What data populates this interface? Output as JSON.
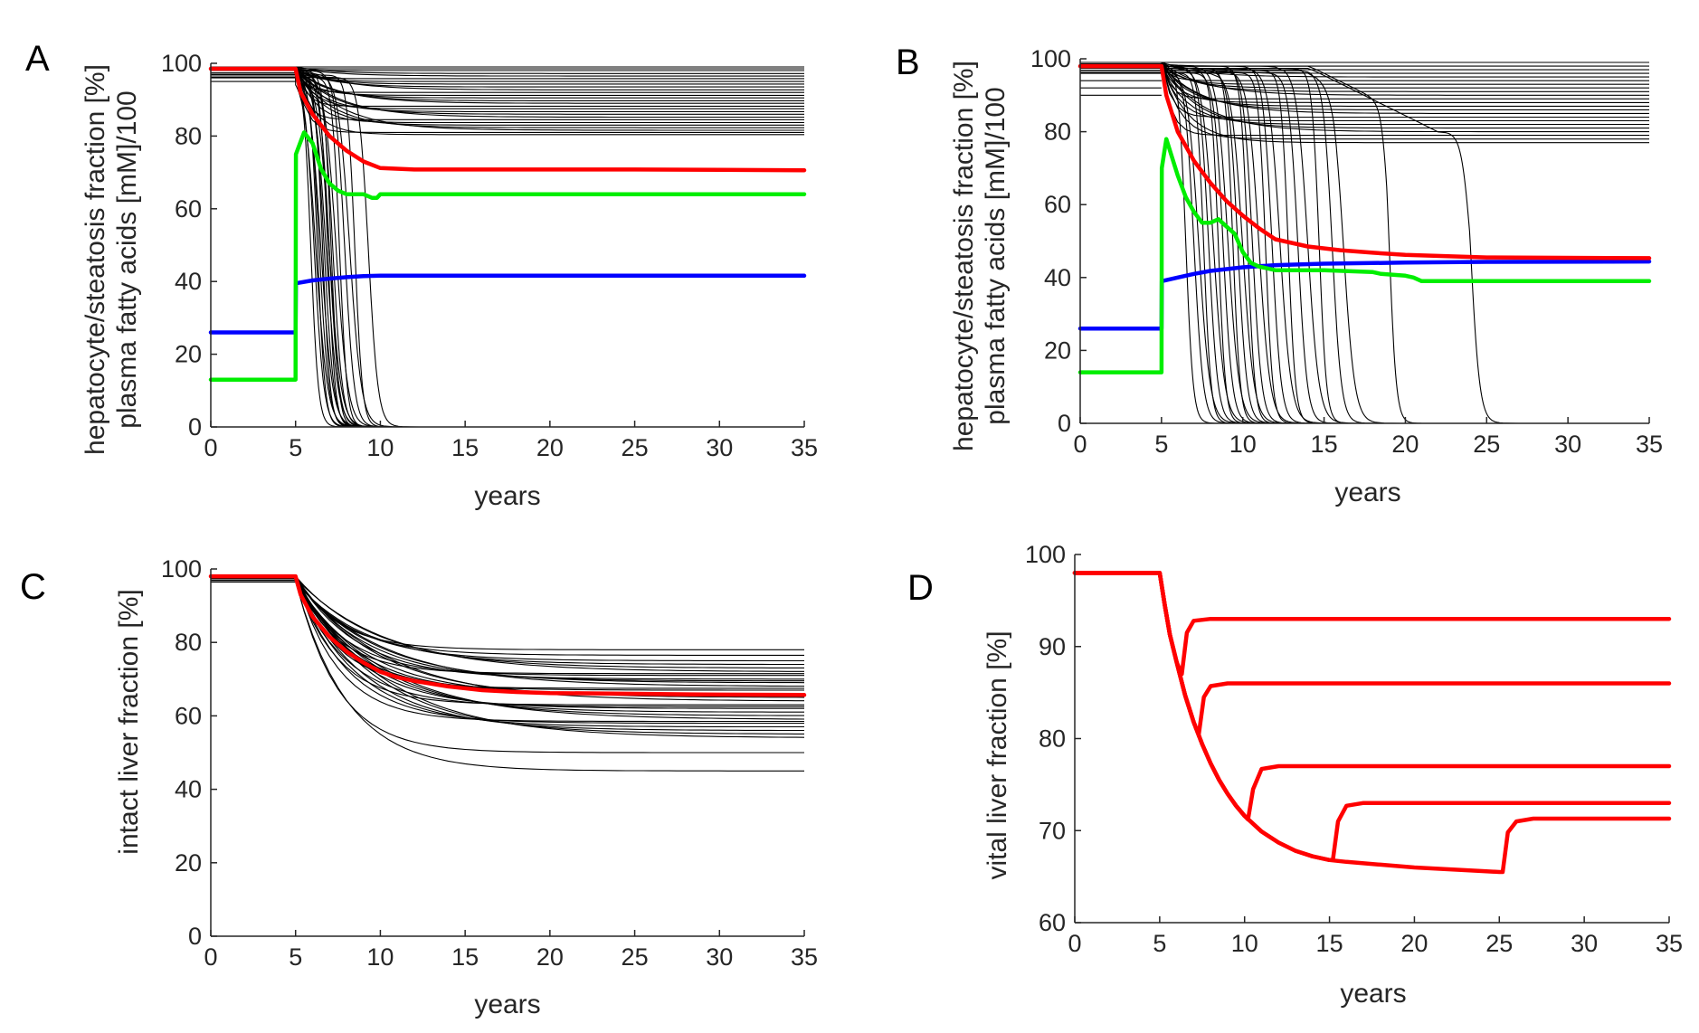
{
  "chart_data": [
    {
      "panel": "A",
      "type": "line",
      "xlabel": "years",
      "ylabel_lines": [
        "hepatocyte/steatosis fraction [%]",
        "plasma fatty acids [mM]/100"
      ],
      "xlim": [
        0,
        35
      ],
      "ylim": [
        0,
        100
      ],
      "xticks": [
        0,
        5,
        10,
        15,
        20,
        25,
        30,
        35
      ],
      "yticks": [
        0,
        20,
        40,
        60,
        80,
        100
      ],
      "ensemble": {
        "color": "#000000",
        "plateau_levels": [
          99,
          98.5,
          98,
          97.2,
          96.5,
          95.8,
          95,
          94.3,
          93.5,
          92.7,
          92,
          91.2,
          90.5,
          89.7,
          89,
          88.2,
          87.5,
          86.7,
          86,
          85.2,
          84.5,
          83.7,
          83,
          82.3,
          81.6,
          81,
          80.4
        ],
        "collapse_years": [
          5.9,
          6.1,
          6.2,
          6.3,
          6.4,
          6.5,
          6.6,
          6.7,
          6.8,
          6.9,
          7.0,
          7.0,
          7.1,
          7.2,
          7.4,
          7.6,
          7.9,
          8.2,
          8.5,
          9.3
        ],
        "baseline_levels": [
          98.5,
          97,
          96,
          95
        ]
      },
      "series": [
        {
          "name": "red",
          "color": "#ff0000",
          "x": [
            0,
            5,
            5.3,
            6,
            7,
            8,
            9,
            10,
            12,
            15,
            20,
            25,
            30,
            35
          ],
          "y": [
            98.5,
            98.5,
            92,
            86,
            80,
            76,
            73,
            71.2,
            70.8,
            70.8,
            70.8,
            70.8,
            70.7,
            70.6
          ]
        },
        {
          "name": "green",
          "color": "#00ee00",
          "x": [
            0,
            5,
            5.02,
            5.5,
            6,
            6.5,
            7,
            7.5,
            8,
            9,
            9.5,
            9.8,
            10,
            35
          ],
          "y": [
            13,
            13,
            75,
            81,
            78,
            71,
            67,
            65,
            64,
            64,
            63,
            63,
            64,
            64
          ]
        },
        {
          "name": "blue",
          "color": "#0000ff",
          "x": [
            0,
            5,
            5.02,
            6,
            7,
            8,
            9,
            10,
            35
          ],
          "y": [
            26,
            26,
            39.5,
            40.3,
            40.8,
            41.2,
            41.5,
            41.6,
            41.6
          ]
        }
      ]
    },
    {
      "panel": "B",
      "type": "line",
      "xlabel": "years",
      "ylabel_lines": [
        "hepatocyte/steatosis fraction [%]",
        "plasma fatty acids [mM]/100"
      ],
      "xlim": [
        0,
        35
      ],
      "ylim": [
        0,
        100
      ],
      "xticks": [
        0,
        5,
        10,
        15,
        20,
        25,
        30,
        35
      ],
      "yticks": [
        0,
        20,
        40,
        60,
        80,
        100
      ],
      "ensemble": {
        "color": "#000000",
        "plateau_levels": [
          99,
          98,
          97,
          96,
          95,
          94,
          93,
          92,
          91,
          90,
          89,
          88,
          87,
          86,
          85,
          84,
          83,
          82,
          81,
          80,
          79,
          78,
          77
        ],
        "collapse_years": [
          6.5,
          7.0,
          7.3,
          7.6,
          7.9,
          8.2,
          8.5,
          8.8,
          9.1,
          9.4,
          9.7,
          10.0,
          10.3,
          10.6,
          11.0,
          11.4,
          11.8,
          12.3,
          12.8,
          13.4,
          14.0,
          14.7,
          15.5,
          16.2,
          19.0,
          24.0
        ],
        "baseline_levels": [
          98,
          96,
          94,
          92,
          90
        ]
      },
      "series": [
        {
          "name": "red",
          "color": "#ff0000",
          "x": [
            0,
            5,
            5.3,
            6,
            7,
            8,
            9,
            10,
            11,
            12,
            14,
            16,
            18,
            20,
            25,
            35
          ],
          "y": [
            98,
            98,
            90,
            80,
            72,
            66,
            61,
            57,
            53.5,
            50.5,
            48.5,
            47.5,
            46.8,
            46.2,
            45.5,
            45.3
          ]
        },
        {
          "name": "green",
          "color": "#00ee00",
          "x": [
            0,
            5,
            5.02,
            5.3,
            6,
            6.5,
            7,
            7.5,
            8,
            8.5,
            9,
            9.5,
            10,
            10.5,
            11,
            12,
            15,
            18,
            18.5,
            20,
            20.5,
            21,
            35
          ],
          "y": [
            14,
            14,
            70,
            78,
            68,
            62,
            58,
            55,
            55,
            56,
            54,
            52,
            47,
            44,
            43,
            42,
            42,
            41.5,
            41,
            40.5,
            40,
            39,
            39
          ]
        },
        {
          "name": "blue",
          "color": "#0000ff",
          "x": [
            0,
            5,
            5.02,
            6,
            7,
            8,
            10,
            12,
            15,
            20,
            25,
            35
          ],
          "y": [
            26,
            26,
            39,
            40,
            41,
            41.8,
            42.8,
            43.4,
            43.8,
            44.1,
            44.3,
            44.4
          ]
        }
      ]
    },
    {
      "panel": "C",
      "type": "line",
      "xlabel": "years",
      "ylabel": "intact liver fraction [%]",
      "xlim": [
        0,
        35
      ],
      "ylim": [
        0,
        100
      ],
      "xticks": [
        0,
        5,
        10,
        15,
        20,
        25,
        30,
        35
      ],
      "yticks": [
        0,
        20,
        40,
        60,
        80,
        100
      ],
      "ensemble": {
        "color": "#000000",
        "start_levels": [
          98,
          97.5,
          97,
          96.5
        ],
        "end_levels": [
          78,
          76.5,
          75,
          74,
          73,
          72,
          71.5,
          71,
          70,
          69.5,
          69,
          68,
          67.5,
          67,
          66,
          65.5,
          65,
          64,
          63,
          62.5,
          62,
          61,
          60,
          59,
          58.5,
          58,
          57,
          56,
          55,
          54,
          50,
          45
        ]
      },
      "series": [
        {
          "name": "red",
          "color": "#ff0000",
          "x": [
            0,
            5,
            5.3,
            6,
            7,
            8,
            9,
            10,
            11,
            12,
            14,
            16,
            18,
            20,
            25,
            30,
            35
          ],
          "y": [
            98,
            98,
            93,
            87,
            81.5,
            77.5,
            74.5,
            72,
            70.5,
            69.5,
            68,
            67,
            66.5,
            66.2,
            66,
            65.8,
            65.7
          ]
        }
      ]
    },
    {
      "panel": "D",
      "type": "line",
      "xlabel": "years",
      "ylabel": "vital liver fraction [%]",
      "xlim": [
        0,
        35
      ],
      "ylim": [
        60,
        100
      ],
      "xticks": [
        0,
        5,
        10,
        15,
        20,
        25,
        30,
        35
      ],
      "yticks": [
        60,
        70,
        80,
        90,
        100
      ],
      "series": [
        {
          "name": "recovery at 6",
          "color": "#ff0000",
          "x": [
            0,
            5,
            5.3,
            5.6,
            6.0,
            6.3,
            6.6,
            7,
            8,
            35
          ],
          "y": [
            98,
            98,
            94.5,
            91.3,
            88.3,
            87.0,
            91.5,
            92.8,
            93,
            93
          ]
        },
        {
          "name": "recovery at 7",
          "color": "#ff0000",
          "x": [
            0,
            5,
            5.3,
            5.6,
            6.0,
            6.5,
            7.0,
            7.3,
            7.6,
            8,
            9,
            35
          ],
          "y": [
            98,
            98,
            94.5,
            91.3,
            88.3,
            84.7,
            81.8,
            80.4,
            84.5,
            85.7,
            86,
            86
          ]
        },
        {
          "name": "recovery at 10",
          "color": "#ff0000",
          "x": [
            0,
            5,
            5.3,
            5.6,
            6,
            6.5,
            7,
            7.5,
            8,
            8.5,
            9,
            9.5,
            10,
            10.2,
            10.5,
            11,
            12,
            35
          ],
          "y": [
            98,
            98,
            94.5,
            91.3,
            88.3,
            84.7,
            81.8,
            79.4,
            77.3,
            75.5,
            74.0,
            72.7,
            71.6,
            71.2,
            74.5,
            76.7,
            77,
            77
          ]
        },
        {
          "name": "recovery at 15",
          "color": "#ff0000",
          "x": [
            0,
            5,
            5.3,
            5.6,
            6,
            6.5,
            7,
            7.5,
            8,
            8.5,
            9,
            9.5,
            10,
            11,
            12,
            13,
            14,
            15,
            15.2,
            15.5,
            16,
            17,
            35
          ],
          "y": [
            98,
            98,
            94.5,
            91.3,
            88.3,
            84.7,
            81.8,
            79.4,
            77.3,
            75.5,
            74.0,
            72.7,
            71.6,
            69.9,
            68.7,
            67.8,
            67.2,
            66.8,
            66.8,
            71.0,
            72.7,
            73,
            73
          ]
        },
        {
          "name": "recovery at 25",
          "color": "#ff0000",
          "x": [
            0,
            5,
            5.3,
            5.6,
            6,
            6.5,
            7,
            7.5,
            8,
            8.5,
            9,
            9.5,
            10,
            11,
            12,
            13,
            14,
            15,
            16,
            18,
            20,
            22,
            24,
            25,
            25.2,
            25.5,
            26,
            27,
            35
          ],
          "y": [
            98,
            98,
            94.5,
            91.3,
            88.3,
            84.7,
            81.8,
            79.4,
            77.3,
            75.5,
            74.0,
            72.7,
            71.6,
            69.9,
            68.7,
            67.8,
            67.2,
            66.8,
            66.6,
            66.3,
            66.0,
            65.8,
            65.6,
            65.5,
            65.5,
            69.8,
            71.0,
            71.3,
            71.3
          ]
        }
      ]
    }
  ]
}
